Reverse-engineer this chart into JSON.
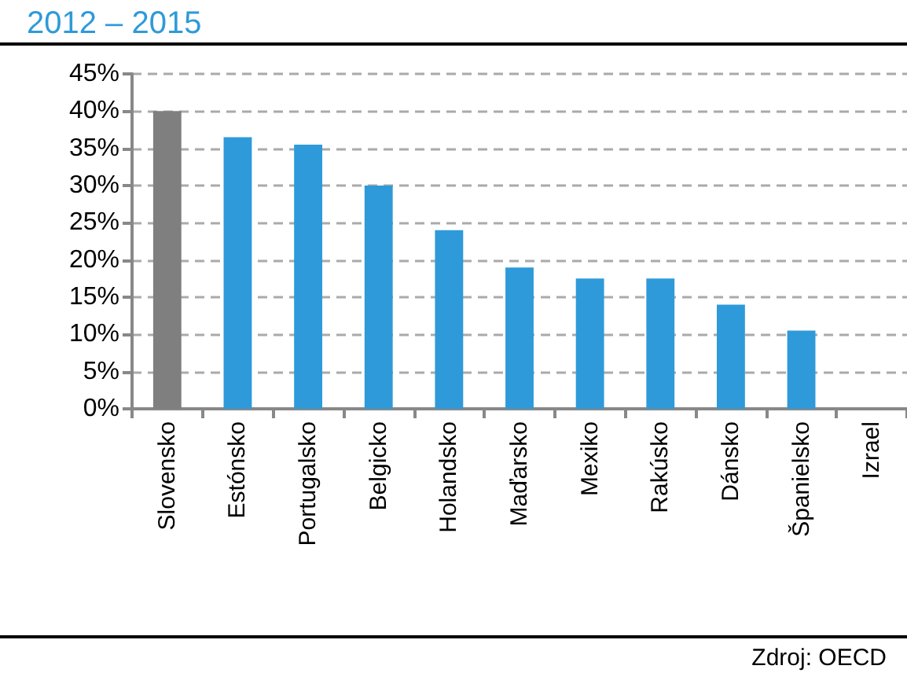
{
  "chart_data": {
    "type": "bar",
    "title": "2012 – 2015",
    "categories": [
      "Slovensko",
      "Estónsko",
      "Portugalsko",
      "Belgicko",
      "Holandsko",
      "Maďarsko",
      "Mexiko",
      "Rakúsko",
      "Dánsko",
      "Španielsko",
      "Izrael"
    ],
    "values": [
      40,
      36.5,
      35.5,
      30,
      24,
      19,
      17.5,
      17.5,
      14,
      10.5,
      null
    ],
    "colors": [
      "#7f7f7f",
      "#2e9ad9",
      "#2e9ad9",
      "#2e9ad9",
      "#2e9ad9",
      "#2e9ad9",
      "#2e9ad9",
      "#2e9ad9",
      "#2e9ad9",
      "#2e9ad9",
      "#2e9ad9"
    ],
    "ylim": [
      0,
      45
    ],
    "yticks": [
      {
        "value": 0,
        "label": "0%"
      },
      {
        "value": 5,
        "label": "5%"
      },
      {
        "value": 10,
        "label": "10%"
      },
      {
        "value": 15,
        "label": "15%"
      },
      {
        "value": 20,
        "label": "20%"
      },
      {
        "value": 25,
        "label": "25%"
      },
      {
        "value": 30,
        "label": "30%"
      },
      {
        "value": 35,
        "label": "35%"
      },
      {
        "value": 40,
        "label": "40%"
      },
      {
        "value": 45,
        "label": "45%"
      }
    ],
    "grid": "y",
    "annotations": [
      "Zdroj: OECD"
    ]
  }
}
